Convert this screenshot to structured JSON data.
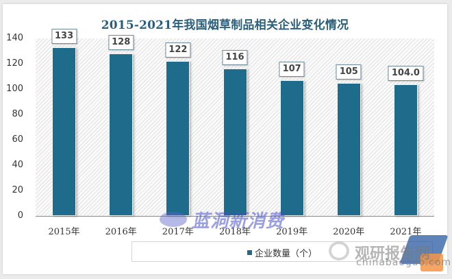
{
  "title": "2015-2021年我国烟草制品相关企业变化情况",
  "chart_data": {
    "type": "bar",
    "title": "2015-2021年我国烟草制品相关企业变化情况",
    "categories": [
      "2015年",
      "2016年",
      "2017年",
      "2018年",
      "2019年",
      "2020年",
      "2021年"
    ],
    "series": [
      {
        "name": "企业数量（个）",
        "values": [
          133,
          128,
          122,
          116,
          107,
          105,
          104.0
        ],
        "color": "#1f6b8c"
      }
    ],
    "data_labels": [
      "133",
      "128",
      "122",
      "116",
      "107",
      "105",
      "104.0"
    ],
    "xlabel": "",
    "ylabel": "",
    "ylim": [
      0,
      140
    ],
    "yticks": [
      "0",
      "20",
      "40",
      "60",
      "80",
      "100",
      "120",
      "140"
    ],
    "grid": false,
    "legend_position": "bottom"
  },
  "legend": {
    "label": "企业数量（个）"
  },
  "watermarks": {
    "center": "蓝洞新消费",
    "corner_main": "观研报告网",
    "corner_sub": "chinabaogao.com"
  }
}
